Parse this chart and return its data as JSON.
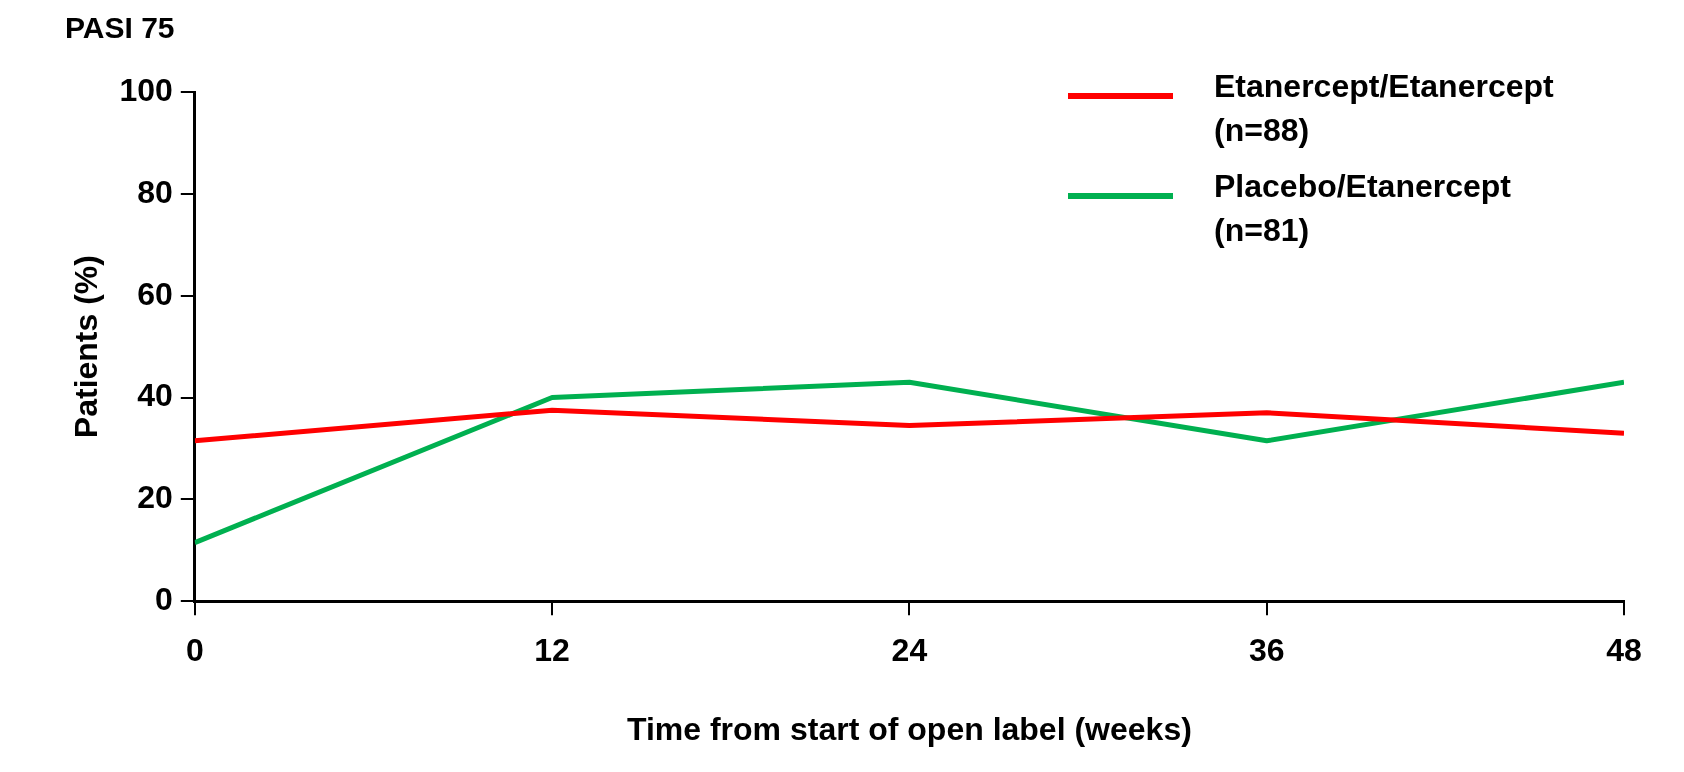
{
  "chart_data": {
    "type": "line",
    "title": "PASI 75",
    "xlabel": "Time from start of open label (weeks)",
    "ylabel": "Patients (%)",
    "x": [
      0,
      12,
      24,
      36,
      48
    ],
    "series": [
      {
        "name": "Etanercept/Etanercept (n=88)",
        "color": "#ff0000",
        "values": [
          31.5,
          37.5,
          34.5,
          37,
          33
        ]
      },
      {
        "name": "Placebo/Etanercept (n=81)",
        "color": "#00b050",
        "values": [
          11.5,
          40,
          43,
          31.5,
          43
        ]
      }
    ],
    "xlim": [
      0,
      48
    ],
    "xticks": [
      0,
      12,
      24,
      36,
      48
    ],
    "ylim": [
      0,
      100
    ],
    "yticks": [
      0,
      20,
      40,
      60,
      80,
      100
    ],
    "grid": false,
    "legend": "top right",
    "marker": "none",
    "line_style": "solid"
  }
}
